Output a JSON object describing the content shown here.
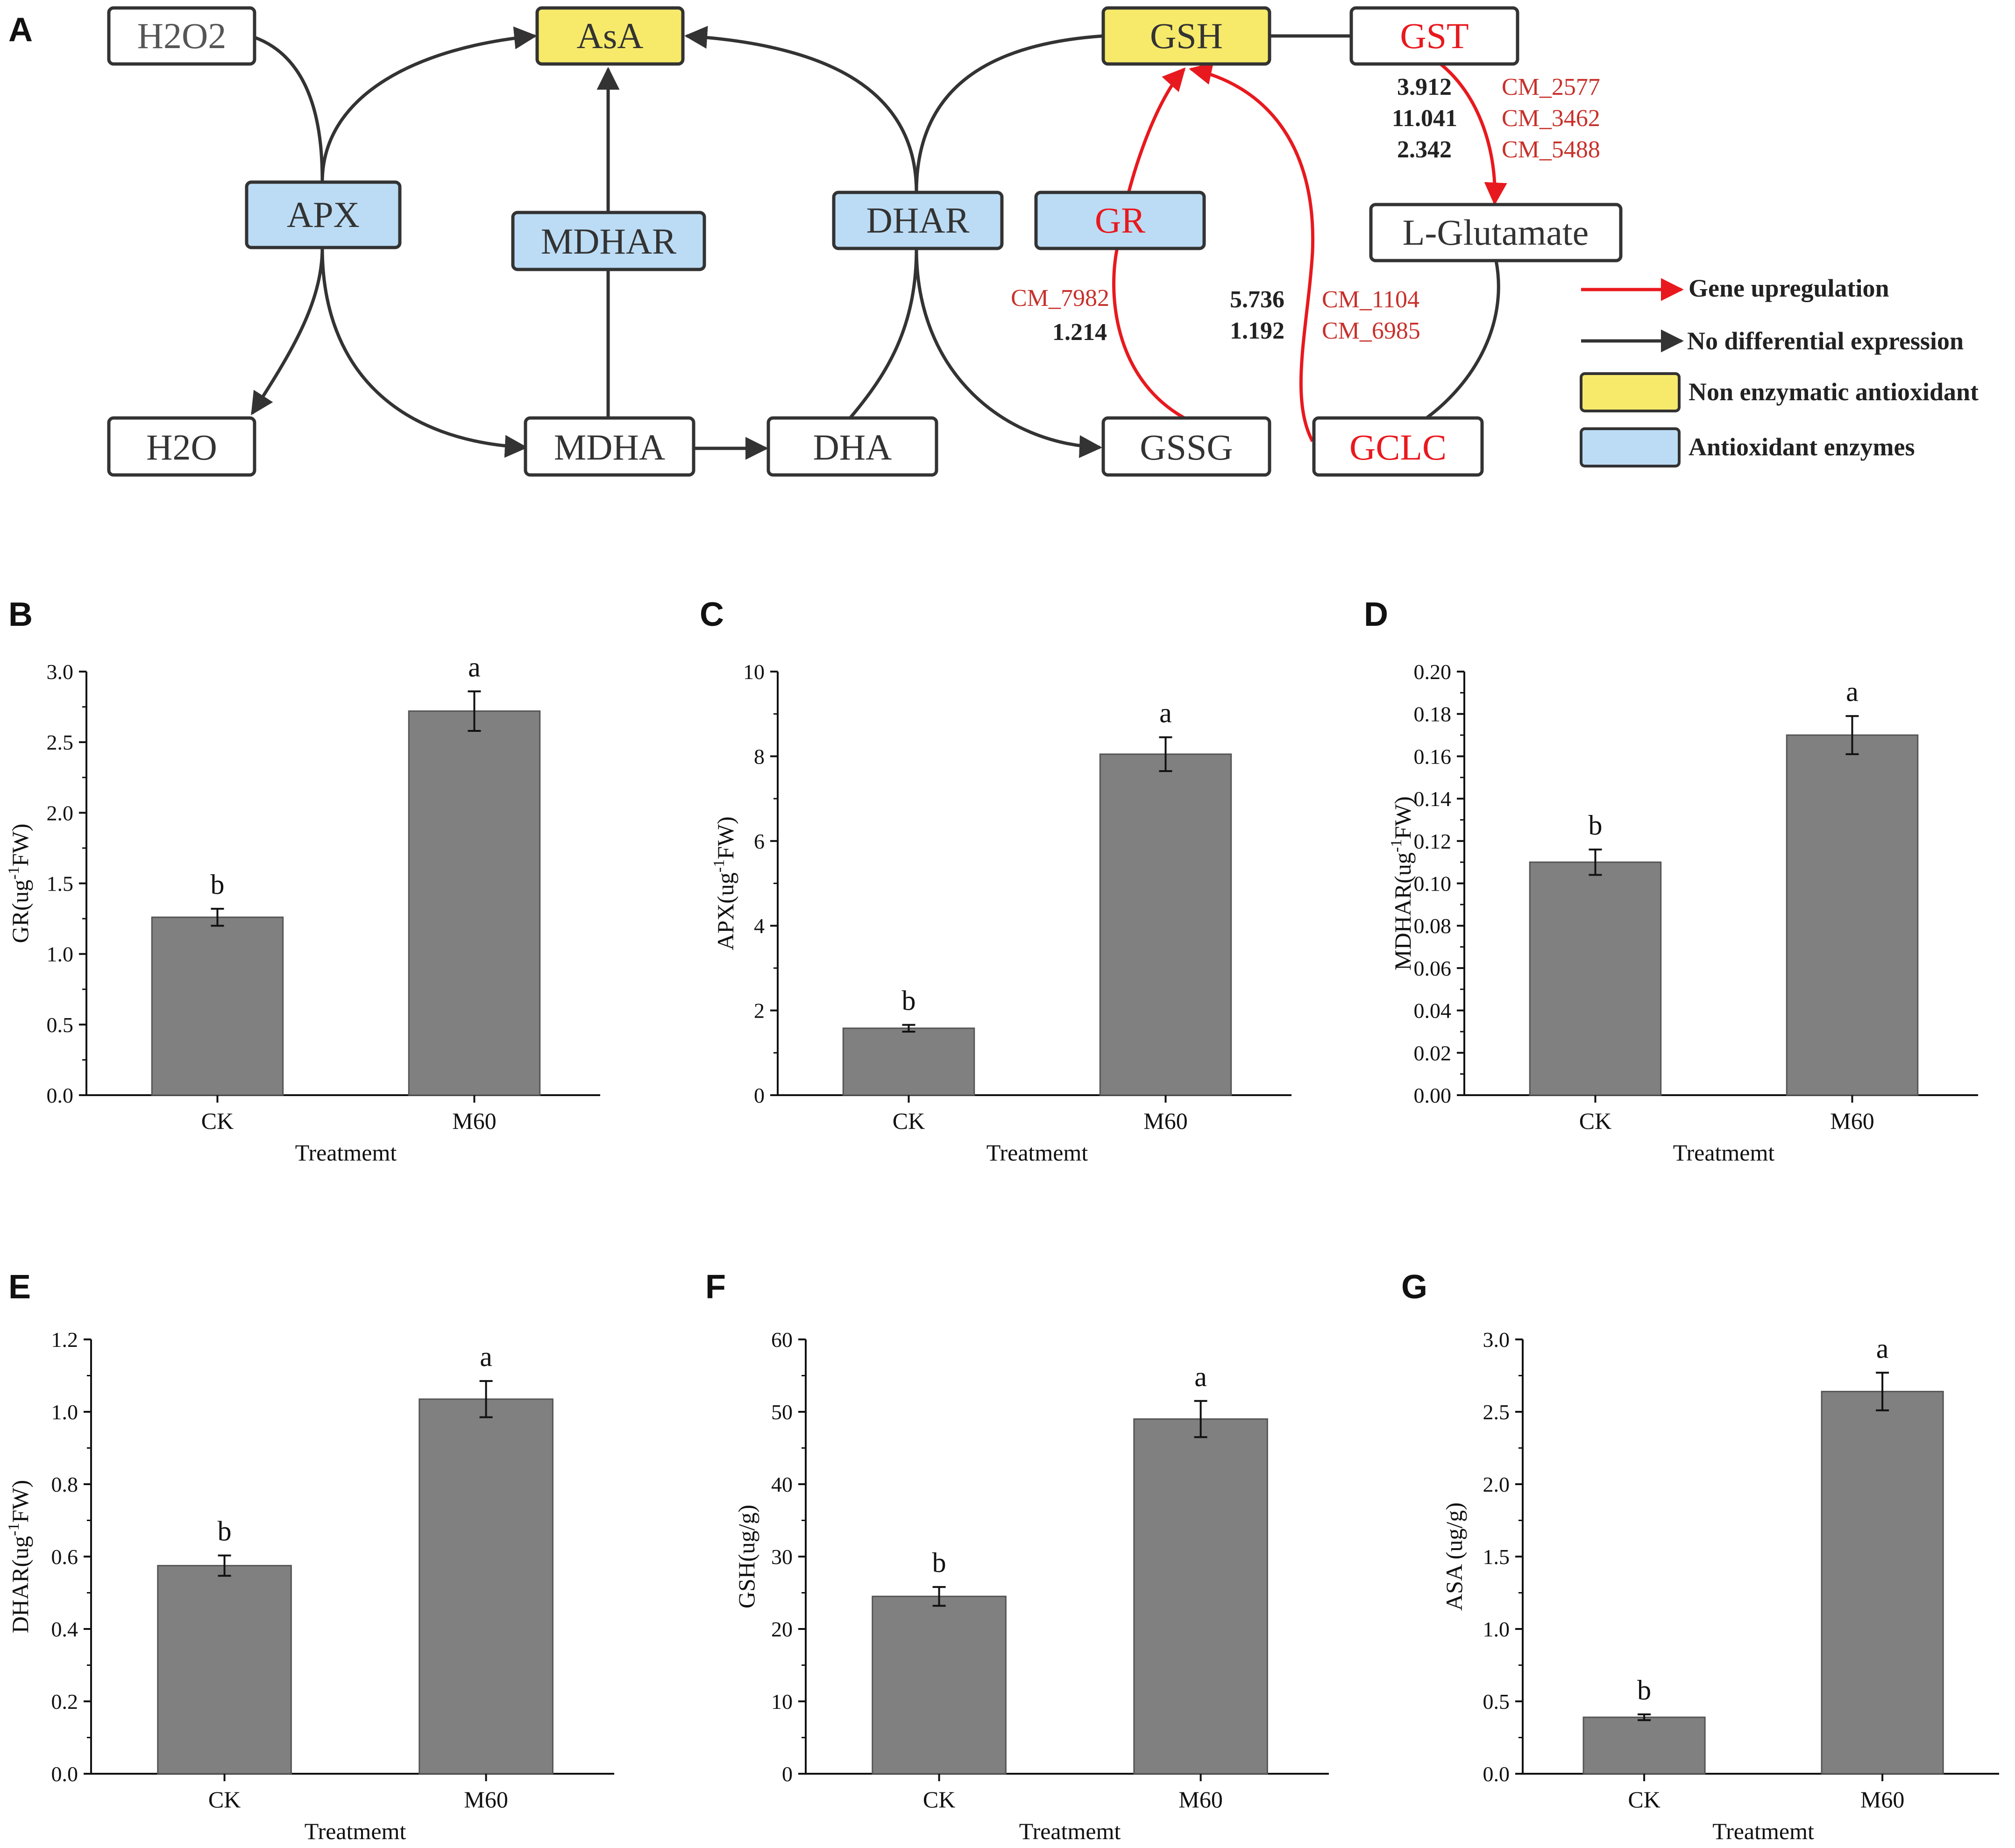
{
  "pathway": {
    "panel_label": "A",
    "nodes": {
      "h2o2": "H2O2",
      "asa": "AsA",
      "gsh": "GSH",
      "gst": "GST",
      "apx": "APX",
      "mdhar": "MDHAR",
      "dhar": "DHAR",
      "gr": "GR",
      "lglu": "L-Glutamate",
      "h2o": "H2O",
      "mdha": "MDHA",
      "dha": "DHA",
      "gssg": "GSSG",
      "gclc": "GCLC"
    },
    "annotations": {
      "gst_genes": [
        "CM_2577",
        "CM_3462",
        "CM_5488"
      ],
      "gst_values": [
        "3.912",
        "11.041",
        "2.342"
      ],
      "gr_gene": "CM_7982",
      "gr_value": "1.214",
      "gclc_genes": [
        "CM_1104",
        "CM_6985"
      ],
      "gclc_values": [
        "5.736",
        "1.192"
      ]
    },
    "legend": {
      "up": "Gene upregulation",
      "nodiff": "No differential expression",
      "nonenz": "Non enzymatic antioxidant",
      "enz": "Antioxidant enzymes"
    },
    "colors": {
      "up": "#e8191e",
      "black": "#333333",
      "yellow": "#f7ea6a",
      "blue": "#bcdcf5"
    }
  },
  "chart_data": [
    {
      "panel": "B",
      "type": "bar",
      "categories": [
        "CK",
        "M60"
      ],
      "values": [
        1.26,
        2.72
      ],
      "errors": [
        0.06,
        0.14
      ],
      "sig": [
        "b",
        "a"
      ],
      "ylabel": "GR(ug-1FW)",
      "ylabel_main": "GR(ug",
      "ylabel_sup": "-1",
      "ylabel_end": "FW)",
      "xlabel": "Treatmemt",
      "ylim": [
        0,
        3.0
      ],
      "ticks": [
        "0.0",
        "0.5",
        "1.0",
        "1.5",
        "2.0",
        "2.5",
        "3.0"
      ],
      "bar_color": "#808080"
    },
    {
      "panel": "C",
      "type": "bar",
      "categories": [
        "CK",
        "M60"
      ],
      "values": [
        1.58,
        8.05
      ],
      "errors": [
        0.08,
        0.4
      ],
      "sig": [
        "b",
        "a"
      ],
      "ylabel": "APX(ug-1FW)",
      "ylabel_main": "APX(ug",
      "ylabel_sup": "-1",
      "ylabel_end": "FW)",
      "xlabel": "Treatmemt",
      "ylim": [
        0,
        10
      ],
      "ticks": [
        "0",
        "2",
        "4",
        "6",
        "8",
        "10"
      ],
      "bar_color": "#808080"
    },
    {
      "panel": "D",
      "type": "bar",
      "categories": [
        "CK",
        "M60"
      ],
      "values": [
        0.11,
        0.17
      ],
      "errors": [
        0.006,
        0.009
      ],
      "sig": [
        "b",
        "a"
      ],
      "ylabel": "MDHAR(ug-1FW)",
      "ylabel_main": "MDHAR(ug",
      "ylabel_sup": "-1",
      "ylabel_end": "FW)",
      "xlabel": "Treatmemt",
      "ylim": [
        0,
        0.2
      ],
      "ticks": [
        "0.00",
        "0.02",
        "0.04",
        "0.06",
        "0.08",
        "0.10",
        "0.12",
        "0.14",
        "0.16",
        "0.18",
        "0.20"
      ],
      "bar_color": "#808080"
    },
    {
      "panel": "E",
      "type": "bar",
      "categories": [
        "CK",
        "M60"
      ],
      "values": [
        0.575,
        1.035
      ],
      "errors": [
        0.028,
        0.05
      ],
      "sig": [
        "b",
        "a"
      ],
      "ylabel": "DHAR(ug-1FW)",
      "ylabel_main": "DHAR(ug",
      "ylabel_sup": "-1",
      "ylabel_end": "FW)",
      "xlabel": "Treatmemt",
      "ylim": [
        0,
        1.2
      ],
      "ticks": [
        "0.0",
        "0.2",
        "0.4",
        "0.6",
        "0.8",
        "1.0",
        "1.2"
      ],
      "bar_color": "#808080"
    },
    {
      "panel": "F",
      "type": "bar",
      "categories": [
        "CK",
        "M60"
      ],
      "values": [
        24.5,
        49.0
      ],
      "errors": [
        1.3,
        2.5
      ],
      "sig": [
        "b",
        "a"
      ],
      "ylabel": "GSH(ug/g)",
      "ylabel_main": "GSH(ug/g)",
      "ylabel_sup": "",
      "ylabel_end": "",
      "xlabel": "Treatmemt",
      "ylim": [
        0,
        60
      ],
      "ticks": [
        "0",
        "10",
        "20",
        "30",
        "40",
        "50",
        "60"
      ],
      "bar_color": "#808080"
    },
    {
      "panel": "G",
      "type": "bar",
      "categories": [
        "CK",
        "M60"
      ],
      "values": [
        0.39,
        2.64
      ],
      "errors": [
        0.02,
        0.13
      ],
      "sig": [
        "b",
        "a"
      ],
      "ylabel": "ASA (ug/g)",
      "ylabel_main": "ASA (ug/g)",
      "ylabel_sup": "",
      "ylabel_end": "",
      "xlabel": "Treatmemt",
      "ylim": [
        0,
        3.0
      ],
      "ticks": [
        "0.0",
        "0.5",
        "1.0",
        "1.5",
        "2.0",
        "2.5",
        "3.0"
      ],
      "bar_color": "#808080"
    }
  ]
}
